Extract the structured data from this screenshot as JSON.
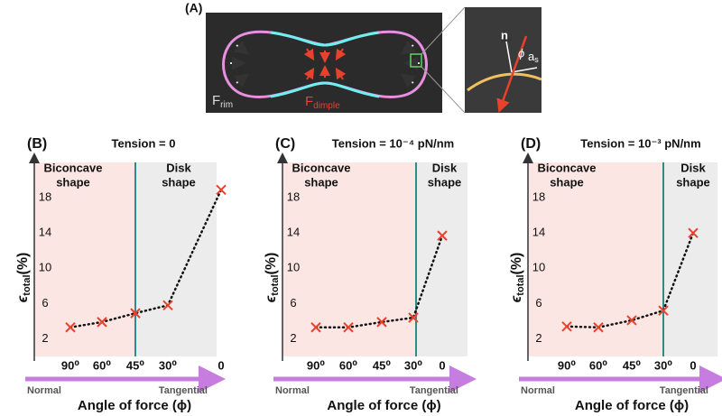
{
  "panel_a": {
    "label": "(A)",
    "f_rim": "F",
    "f_rim_sub": "rim",
    "f_dimple": "F",
    "f_dimple_sub": "dimple",
    "inset_n": "n",
    "inset_phi": "ϕ",
    "inset_as": "a",
    "inset_as_sub": "s"
  },
  "chart_data": [
    {
      "type": "line",
      "panel": "(B)",
      "title": "Tension = 0",
      "categories": [
        "90⁰",
        "60⁰",
        "45⁰",
        "30⁰",
        "0"
      ],
      "values": [
        3.3,
        3.9,
        4.9,
        5.8,
        18.9
      ],
      "marker_color": "#e8412c",
      "line_color": "#111111",
      "ylim": [
        0,
        22
      ],
      "yticks": [
        2,
        6,
        10,
        14,
        18
      ],
      "y_label": {
        "symbol": "ϵ",
        "sub": "total",
        "unit": "(%)"
      },
      "x_label": "Angle of force (ϕ)",
      "x_start": "Normal",
      "x_end": "Tangential",
      "left_region": [
        "Biconcave",
        "shape"
      ],
      "right_region": [
        "Disk",
        "shape"
      ]
    },
    {
      "type": "line",
      "panel": "(C)",
      "title": "Tension = 10⁻⁴ pN/nm",
      "categories": [
        "90⁰",
        "60⁰",
        "45⁰",
        "30⁰",
        "0"
      ],
      "values": [
        3.3,
        3.3,
        3.9,
        4.4,
        13.7
      ],
      "marker_color": "#e8412c",
      "line_color": "#111111",
      "ylim": [
        0,
        22
      ],
      "yticks": [
        2,
        6,
        10,
        14,
        18
      ],
      "y_label": {
        "symbol": "ϵ",
        "sub": "total",
        "unit": "(%)"
      },
      "x_label": "Angle of force (ϕ)",
      "x_start": "Normal",
      "x_end": "Tangential",
      "left_region": [
        "Biconcave",
        "shape"
      ],
      "right_region": [
        "Disk",
        "shape"
      ]
    },
    {
      "type": "line",
      "panel": "(D)",
      "title": "Tension = 10⁻³ pN/nm",
      "categories": [
        "90⁰",
        "60⁰",
        "45⁰",
        "30⁰",
        "0"
      ],
      "values": [
        3.4,
        3.3,
        4.1,
        5.2,
        14.0
      ],
      "marker_color": "#e8412c",
      "line_color": "#111111",
      "ylim": [
        0,
        22
      ],
      "yticks": [
        2,
        6,
        10,
        14,
        18
      ],
      "y_label": {
        "symbol": "ϵ",
        "sub": "total",
        "unit": "(%)"
      },
      "x_label": "Angle of force (ϕ)",
      "x_start": "Normal",
      "x_end": "Tangential",
      "left_region": [
        "Biconcave",
        "shape"
      ],
      "right_region": [
        "Disk",
        "shape"
      ]
    }
  ]
}
